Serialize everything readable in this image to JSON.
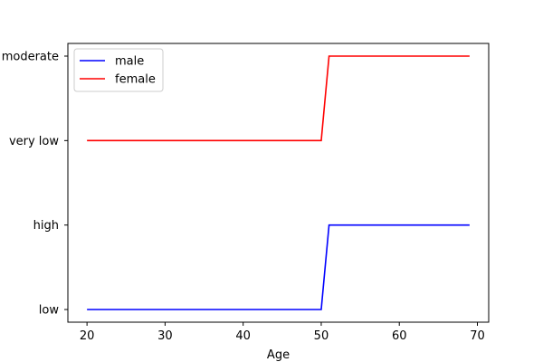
{
  "chart_data": {
    "type": "line",
    "title": "",
    "xlabel": "Age",
    "ylabel": "",
    "xlim": [
      17.55,
      71.45
    ],
    "x_ticks": [
      20,
      30,
      40,
      50,
      60,
      70
    ],
    "y_categories": [
      "low",
      "high",
      "very low",
      "moderate"
    ],
    "grid": false,
    "legend_position": "top-left",
    "series": [
      {
        "name": "male",
        "color": "#0000ff",
        "x": [
          20,
          50,
          51,
          69
        ],
        "y": [
          "low",
          "low",
          "high",
          "high"
        ]
      },
      {
        "name": "female",
        "color": "#ff0000",
        "x": [
          20,
          50,
          51,
          69
        ],
        "y": [
          "very low",
          "very low",
          "moderate",
          "moderate"
        ]
      }
    ]
  }
}
